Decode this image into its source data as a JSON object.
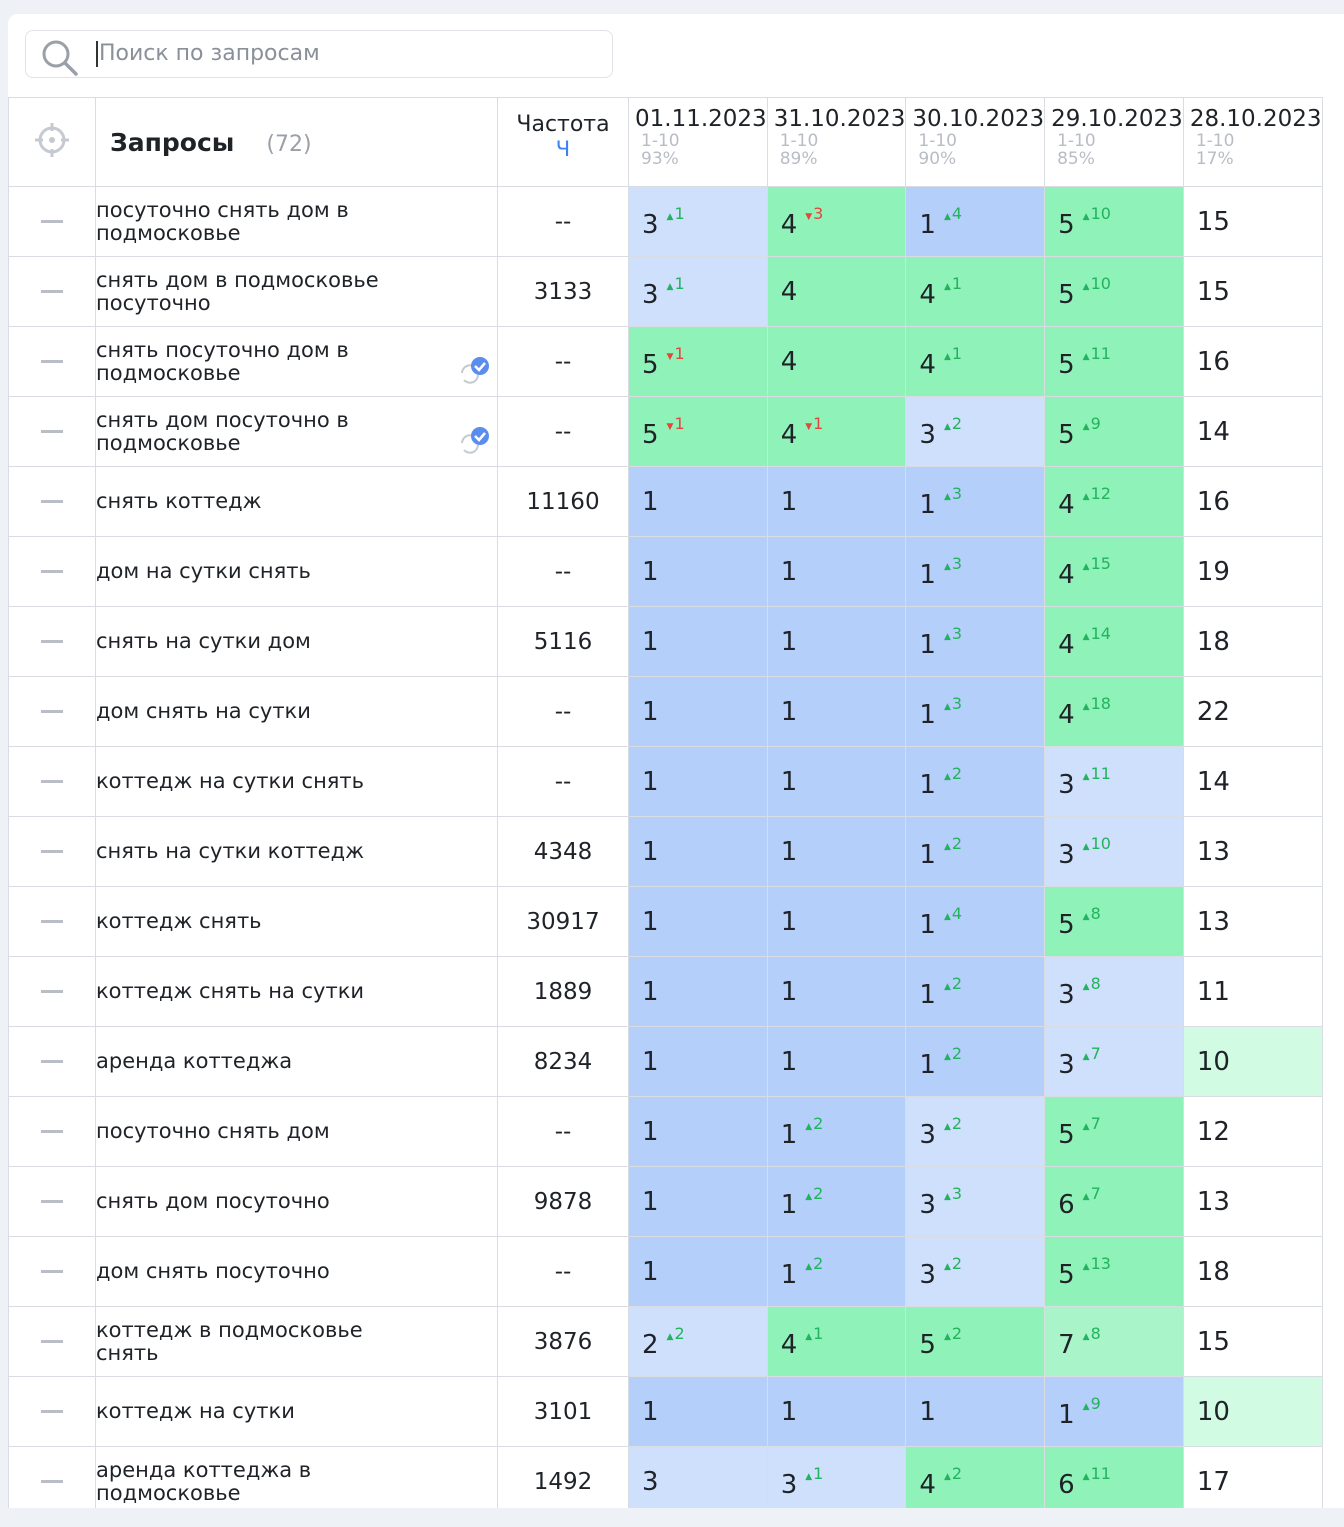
{
  "search": {
    "placeholder": "Поиск по запросам"
  },
  "table": {
    "header": {
      "queries": "Запросы",
      "count": "(72)",
      "frequency": "Частота",
      "frequency_type": "Ч",
      "dates": [
        {
          "date": "01.11.2023",
          "range": "1-10",
          "percent": "93%"
        },
        {
          "date": "31.10.2023",
          "range": "1-10",
          "percent": "89%"
        },
        {
          "date": "30.10.2023",
          "range": "1-10",
          "percent": "90%"
        },
        {
          "date": "29.10.2023",
          "range": "1-10",
          "percent": "85%"
        },
        {
          "date": "28.10.2023",
          "range": "1-10",
          "percent": "17%"
        }
      ]
    },
    "rows": [
      {
        "query": "посуточно снять дом в подмосковье",
        "frequency": "--",
        "positions": [
          {
            "value": 3,
            "change": {
              "direction": "up",
              "value": 1
            }
          },
          {
            "value": 4,
            "change": {
              "direction": "down",
              "value": 3
            }
          },
          {
            "value": 1,
            "change": {
              "direction": "up",
              "value": 4
            }
          },
          {
            "value": 5,
            "change": {
              "direction": "up",
              "value": 10
            }
          },
          {
            "value": 15
          }
        ]
      },
      {
        "query": "снять дом в подмосковье посуточно",
        "frequency": 3133,
        "positions": [
          {
            "value": 3,
            "change": {
              "direction": "up",
              "value": 1
            }
          },
          {
            "value": 4
          },
          {
            "value": 4,
            "change": {
              "direction": "up",
              "value": 1
            }
          },
          {
            "value": 5,
            "change": {
              "direction": "up",
              "value": 10
            }
          },
          {
            "value": 15
          }
        ]
      },
      {
        "query": "снять посуточно дом в подмосковье",
        "frequency": "--",
        "checked": true,
        "positions": [
          {
            "value": 5,
            "change": {
              "direction": "down",
              "value": 1
            }
          },
          {
            "value": 4
          },
          {
            "value": 4,
            "change": {
              "direction": "up",
              "value": 1
            }
          },
          {
            "value": 5,
            "change": {
              "direction": "up",
              "value": 11
            }
          },
          {
            "value": 16
          }
        ]
      },
      {
        "query": "снять дом посуточно в подмосковье",
        "frequency": "--",
        "checked": true,
        "positions": [
          {
            "value": 5,
            "change": {
              "direction": "down",
              "value": 1
            }
          },
          {
            "value": 4,
            "change": {
              "direction": "down",
              "value": 1
            }
          },
          {
            "value": 3,
            "change": {
              "direction": "up",
              "value": 2
            }
          },
          {
            "value": 5,
            "change": {
              "direction": "up",
              "value": 9
            }
          },
          {
            "value": 14
          }
        ]
      },
      {
        "query": "снять коттедж",
        "frequency": 11160,
        "positions": [
          {
            "value": 1
          },
          {
            "value": 1
          },
          {
            "value": 1,
            "change": {
              "direction": "up",
              "value": 3
            }
          },
          {
            "value": 4,
            "change": {
              "direction": "up",
              "value": 12
            }
          },
          {
            "value": 16
          }
        ]
      },
      {
        "query": "дом на сутки снять",
        "frequency": "--",
        "positions": [
          {
            "value": 1
          },
          {
            "value": 1
          },
          {
            "value": 1,
            "change": {
              "direction": "up",
              "value": 3
            }
          },
          {
            "value": 4,
            "change": {
              "direction": "up",
              "value": 15
            }
          },
          {
            "value": 19
          }
        ]
      },
      {
        "query": "снять на сутки дом",
        "frequency": 5116,
        "positions": [
          {
            "value": 1
          },
          {
            "value": 1
          },
          {
            "value": 1,
            "change": {
              "direction": "up",
              "value": 3
            }
          },
          {
            "value": 4,
            "change": {
              "direction": "up",
              "value": 14
            }
          },
          {
            "value": 18
          }
        ]
      },
      {
        "query": "дом снять на сутки",
        "frequency": "--",
        "positions": [
          {
            "value": 1
          },
          {
            "value": 1
          },
          {
            "value": 1,
            "change": {
              "direction": "up",
              "value": 3
            }
          },
          {
            "value": 4,
            "change": {
              "direction": "up",
              "value": 18
            }
          },
          {
            "value": 22
          }
        ]
      },
      {
        "query": "коттедж на сутки снять",
        "frequency": "--",
        "positions": [
          {
            "value": 1
          },
          {
            "value": 1
          },
          {
            "value": 1,
            "change": {
              "direction": "up",
              "value": 2
            }
          },
          {
            "value": 3,
            "change": {
              "direction": "up",
              "value": 11
            }
          },
          {
            "value": 14
          }
        ]
      },
      {
        "query": "снять на сутки коттедж",
        "frequency": 4348,
        "positions": [
          {
            "value": 1
          },
          {
            "value": 1
          },
          {
            "value": 1,
            "change": {
              "direction": "up",
              "value": 2
            }
          },
          {
            "value": 3,
            "change": {
              "direction": "up",
              "value": 10
            }
          },
          {
            "value": 13
          }
        ]
      },
      {
        "query": "коттедж снять",
        "frequency": 30917,
        "positions": [
          {
            "value": 1
          },
          {
            "value": 1
          },
          {
            "value": 1,
            "change": {
              "direction": "up",
              "value": 4
            }
          },
          {
            "value": 5,
            "change": {
              "direction": "up",
              "value": 8
            }
          },
          {
            "value": 13
          }
        ]
      },
      {
        "query": "коттедж снять на сутки",
        "frequency": 1889,
        "positions": [
          {
            "value": 1
          },
          {
            "value": 1
          },
          {
            "value": 1,
            "change": {
              "direction": "up",
              "value": 2
            }
          },
          {
            "value": 3,
            "change": {
              "direction": "up",
              "value": 8
            }
          },
          {
            "value": 11
          }
        ]
      },
      {
        "query": "аренда коттеджа",
        "frequency": 8234,
        "positions": [
          {
            "value": 1
          },
          {
            "value": 1
          },
          {
            "value": 1,
            "change": {
              "direction": "up",
              "value": 2
            }
          },
          {
            "value": 3,
            "change": {
              "direction": "up",
              "value": 7
            }
          },
          {
            "value": 10
          }
        ]
      },
      {
        "query": "посуточно снять дом",
        "frequency": "--",
        "positions": [
          {
            "value": 1
          },
          {
            "value": 1,
            "change": {
              "direction": "up",
              "value": 2
            }
          },
          {
            "value": 3,
            "change": {
              "direction": "up",
              "value": 2
            }
          },
          {
            "value": 5,
            "change": {
              "direction": "up",
              "value": 7
            }
          },
          {
            "value": 12
          }
        ]
      },
      {
        "query": "снять дом посуточно",
        "frequency": 9878,
        "positions": [
          {
            "value": 1
          },
          {
            "value": 1,
            "change": {
              "direction": "up",
              "value": 2
            }
          },
          {
            "value": 3,
            "change": {
              "direction": "up",
              "value": 3
            }
          },
          {
            "value": 6,
            "change": {
              "direction": "up",
              "value": 7
            }
          },
          {
            "value": 13
          }
        ]
      },
      {
        "query": "дом снять посуточно",
        "frequency": "--",
        "positions": [
          {
            "value": 1
          },
          {
            "value": 1,
            "change": {
              "direction": "up",
              "value": 2
            }
          },
          {
            "value": 3,
            "change": {
              "direction": "up",
              "value": 2
            }
          },
          {
            "value": 5,
            "change": {
              "direction": "up",
              "value": 13
            }
          },
          {
            "value": 18
          }
        ]
      },
      {
        "query": "коттедж в подмосковье снять",
        "frequency": 3876,
        "positions": [
          {
            "value": 2,
            "change": {
              "direction": "up",
              "value": 2
            }
          },
          {
            "value": 4,
            "change": {
              "direction": "up",
              "value": 1
            }
          },
          {
            "value": 5,
            "change": {
              "direction": "up",
              "value": 2
            }
          },
          {
            "value": 7,
            "change": {
              "direction": "up",
              "value": 8
            }
          },
          {
            "value": 15
          }
        ]
      },
      {
        "query": "коттедж на сутки",
        "frequency": 3101,
        "positions": [
          {
            "value": 1
          },
          {
            "value": 1
          },
          {
            "value": 1
          },
          {
            "value": 1,
            "change": {
              "direction": "up",
              "value": 9
            }
          },
          {
            "value": 10
          }
        ]
      },
      {
        "query": "аренда коттеджа в подмосковье",
        "frequency": 1492,
        "positions": [
          {
            "value": 3
          },
          {
            "value": 3,
            "change": {
              "direction": "up",
              "value": 1
            }
          },
          {
            "value": 4,
            "change": {
              "direction": "up",
              "value": 2
            }
          },
          {
            "value": 6,
            "change": {
              "direction": "up",
              "value": 11
            }
          },
          {
            "value": 17
          }
        ]
      }
    ]
  }
}
